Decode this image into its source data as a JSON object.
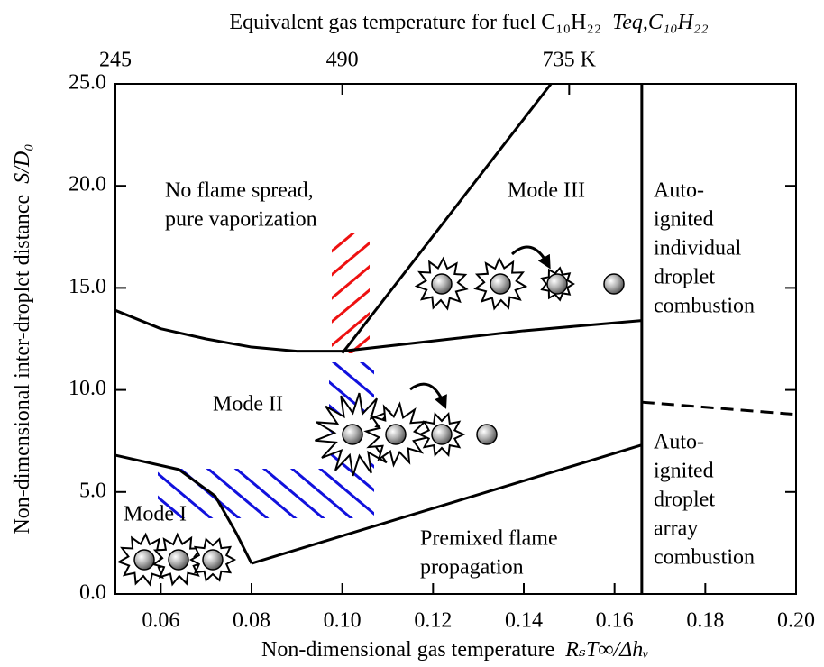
{
  "chart_data": {
    "type": "line",
    "x2label": "Equivalent gas temperature for fuel C₁₀H₂₂",
    "x2symbol": "Teq,C₁₀H₂₂",
    "xlabel": "Non-dimensional gas temperature",
    "xsymbol": "RₛT∞/Δhᵥ",
    "ylabel": "Non-dimensional inter-droplet distance",
    "ysymbol": "S/D₀",
    "xlim": [
      0.05,
      0.2
    ],
    "xticks": [
      0.06,
      0.08,
      {
        "value": 0.1,
        "label": "0.10"
      },
      0.12,
      0.14,
      0.16,
      0.18,
      {
        "value": 0.2,
        "label": "0.20"
      }
    ],
    "x2lim": [
      245,
      980
    ],
    "x2ticks": [
      245,
      490,
      {
        "value": 735,
        "label": "735 K"
      }
    ],
    "ylim": [
      0,
      25
    ],
    "yticks": [
      {
        "value": 0,
        "label": "0.0"
      },
      {
        "value": 5,
        "label": "5.0"
      },
      {
        "value": 10,
        "label": "10.0"
      },
      {
        "value": 15,
        "label": "15.0"
      },
      {
        "value": 20,
        "label": "20.0"
      },
      {
        "value": 25,
        "label": "25.0"
      }
    ],
    "series": [
      {
        "color": "#000000",
        "x": [
          0.05,
          0.06,
          0.07,
          0.08,
          0.09,
          0.1,
          0.12,
          0.14,
          0.166
        ],
        "values": [
          13.9,
          13.0,
          12.5,
          12.1,
          11.9,
          11.9,
          12.4,
          12.9,
          13.4
        ]
      },
      {
        "color": "#000000",
        "x": [
          0.1,
          0.146
        ],
        "values": [
          11.8,
          25
        ]
      },
      {
        "color": "#000000",
        "x": [
          0.166,
          0.166
        ],
        "values": [
          0,
          25
        ]
      },
      {
        "color": "#000000",
        "x": [
          0.166,
          0.2
        ],
        "values": [
          9.4,
          8.8
        ],
        "dashed": true
      },
      {
        "color": "#000000",
        "x": [
          0.08,
          0.166
        ],
        "values": [
          1.5,
          7.3
        ]
      },
      {
        "color": "#000000",
        "x": [
          0.05,
          0.064,
          0.072,
          0.0766,
          0.08
        ],
        "values": [
          6.8,
          6.1,
          4.8,
          3.0,
          1.5
        ]
      }
    ],
    "annotations": [
      [
        "No flame spread,",
        "pure vaporization"
      ],
      [
        "Mode III"
      ],
      [
        "Mode II"
      ],
      [
        "Mode I"
      ],
      [
        "Premixed flame",
        "propagation"
      ],
      [
        "Auto-",
        "ignited",
        "individual",
        "droplet",
        "combustion"
      ],
      [
        "Auto-",
        "ignited",
        "droplet",
        "array",
        "combustion"
      ]
    ]
  }
}
